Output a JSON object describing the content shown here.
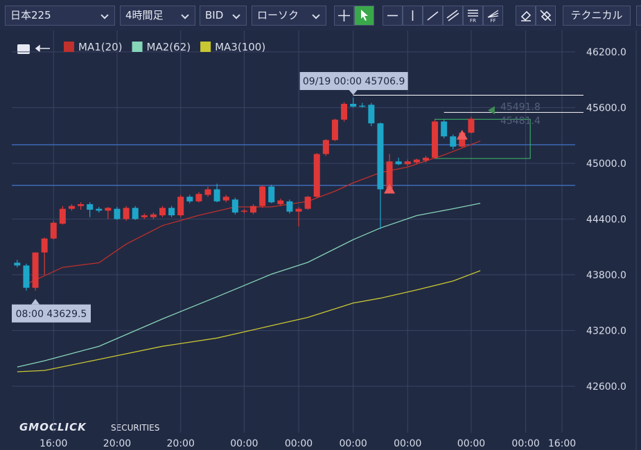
{
  "toolbar": {
    "symbol": "日本225",
    "timeframe": "4時間足",
    "side": "BID",
    "chart_style": "ローソク",
    "technical": "テクニカル"
  },
  "logo": {
    "brand": "GMOCLICK",
    "sub": "SECURITIES"
  },
  "chart_data": {
    "type": "candlestick",
    "xlim": [
      -0.6,
      61.45
    ],
    "xticks": [
      {
        "value": 4,
        "label": "16:00"
      },
      {
        "value": 11,
        "label": "20:00"
      },
      {
        "value": 18,
        "label": "20:00"
      },
      {
        "value": 25,
        "label": "00:00"
      },
      {
        "value": 31,
        "label": "00:00"
      },
      {
        "value": 37,
        "label": "00:00"
      },
      {
        "value": 43,
        "label": "00:00"
      },
      {
        "value": 50,
        "label": "00:00"
      },
      {
        "value": 56,
        "label": "00:00"
      },
      {
        "value": 60,
        "label": "16:00"
      }
    ],
    "ylim": [
      42100,
      46430
    ],
    "yticks": [
      {
        "value": 42600,
        "label": "42600.0"
      },
      {
        "value": 43200,
        "label": "43200.0"
      },
      {
        "value": 43800,
        "label": "43800.0"
      },
      {
        "value": 44400,
        "label": "44400.0"
      },
      {
        "value": 45000,
        "label": "45000.0"
      },
      {
        "value": 45600,
        "label": "45600.0"
      },
      {
        "value": 46200,
        "label": "46200.0"
      }
    ],
    "grid": true,
    "up_color": "#e03838",
    "down_color": "#1ea6c9",
    "x": [
      0,
      1,
      2,
      3,
      4,
      5,
      6,
      7,
      8,
      9,
      10,
      11,
      12,
      13,
      14,
      15,
      16,
      17,
      18,
      19,
      20,
      21,
      22,
      23,
      24,
      25,
      26,
      27,
      28,
      29,
      30,
      31,
      32,
      33,
      34,
      35,
      36,
      37,
      38,
      39,
      40,
      41,
      42,
      43,
      44,
      45,
      46,
      47,
      48,
      49,
      50
    ],
    "open": [
      43930,
      43900,
      43660,
      44040,
      44190,
      44350,
      44510,
      44540,
      44560,
      44510,
      44490,
      44510,
      44400,
      44520,
      44420,
      44420,
      44440,
      44520,
      44440,
      44640,
      44590,
      44660,
      44720,
      44600,
      44610,
      44480,
      44470,
      44540,
      44750,
      44560,
      44590,
      44480,
      44510,
      44640,
      45100,
      45250,
      45470,
      45640,
      45620,
      45630,
      45430,
      44710,
      45020,
      44990,
      45010,
      45030,
      45060,
      45450,
      45290,
      45180,
      45330
    ],
    "high": [
      43960,
      43920,
      44040,
      44200,
      44380,
      44540,
      44560,
      44580,
      44580,
      44530,
      44530,
      44530,
      44540,
      44540,
      44460,
      44470,
      44540,
      44540,
      44660,
      44660,
      44690,
      44750,
      44780,
      44660,
      44630,
      44510,
      44560,
      44760,
      44770,
      44620,
      44610,
      44530,
      44650,
      45110,
      45260,
      45480,
      45660,
      45706.9,
      45650,
      45650,
      45440,
      45100,
      45060,
      45040,
      45050,
      45080,
      45470,
      45470,
      45310,
      45350,
      45500
    ],
    "low": [
      43880,
      43630,
      43629.5,
      43800,
      44180,
      44340,
      44490,
      44500,
      44420,
      44470,
      44400,
      44390,
      44380,
      44390,
      44400,
      44400,
      44420,
      44420,
      44420,
      44570,
      44580,
      44640,
      44580,
      44580,
      44450,
      44460,
      44450,
      44520,
      44570,
      44540,
      44460,
      44320,
      44500,
      44630,
      45080,
      45240,
      45450,
      45600,
      45600,
      45400,
      44290,
      44700,
      44980,
      44970,
      44990,
      45010,
      45050,
      45270,
      45150,
      45170,
      45320
    ],
    "close": [
      43900,
      43660,
      44040,
      44190,
      44360,
      44510,
      44540,
      44560,
      44500,
      44490,
      44520,
      44400,
      44520,
      44400,
      44440,
      44450,
      44520,
      44440,
      44640,
      44590,
      44670,
      44720,
      44590,
      44640,
      44470,
      44490,
      44540,
      44750,
      44580,
      44600,
      44480,
      44510,
      44640,
      45100,
      45250,
      45470,
      45640,
      45610,
      45610,
      45430,
      44720,
      45020,
      44990,
      45020,
      45040,
      45060,
      45450,
      45290,
      45180,
      45330,
      45480
    ],
    "series": [
      {
        "name": "MA1(20)",
        "color": "#c0302c",
        "x": [
          1,
          5,
          9,
          12,
          16,
          20,
          24,
          28,
          32,
          35,
          37,
          40,
          43,
          47,
          51
        ],
        "values": [
          43700,
          43880,
          43930,
          44130,
          44330,
          44440,
          44530,
          44530,
          44590,
          44700,
          44790,
          44900,
          44960,
          45090,
          45240
        ]
      },
      {
        "name": "MA2(62)",
        "color": "#86d6b9",
        "x": [
          0,
          3,
          9,
          16,
          22,
          28,
          32,
          37,
          40,
          44,
          48,
          51
        ],
        "values": [
          42807,
          42874,
          43030,
          43325,
          43563,
          43807,
          43933,
          44178,
          44304,
          44437,
          44511,
          44570
        ]
      },
      {
        "name": "MA3(100)",
        "color": "#c9c832",
        "x": [
          0,
          3,
          9,
          16,
          22,
          28,
          32,
          37,
          40,
          44,
          48,
          51
        ],
        "values": [
          42756,
          42770,
          42889,
          43030,
          43119,
          43252,
          43341,
          43496,
          43548,
          43637,
          43733,
          43844
        ]
      }
    ],
    "annotations": [
      {
        "text": "09/19 00:00 45706.9",
        "x": 37,
        "value": 45706.9
      },
      {
        "text": "08:00 43629.5",
        "x": 2,
        "value": 43629.5
      }
    ],
    "quote": [
      45491.8,
      45481.4
    ],
    "hlines": [
      45200,
      44763
    ],
    "rays": [
      {
        "x": 37,
        "value": 45733
      },
      {
        "x": 47,
        "value": 45548
      }
    ],
    "box": {
      "x": [
        46,
        56.5
      ],
      "values": [
        45474,
        45052
      ]
    },
    "signals": [
      {
        "x": 41,
        "value": 44720
      },
      {
        "x": 49,
        "value": 45300
      }
    ]
  }
}
